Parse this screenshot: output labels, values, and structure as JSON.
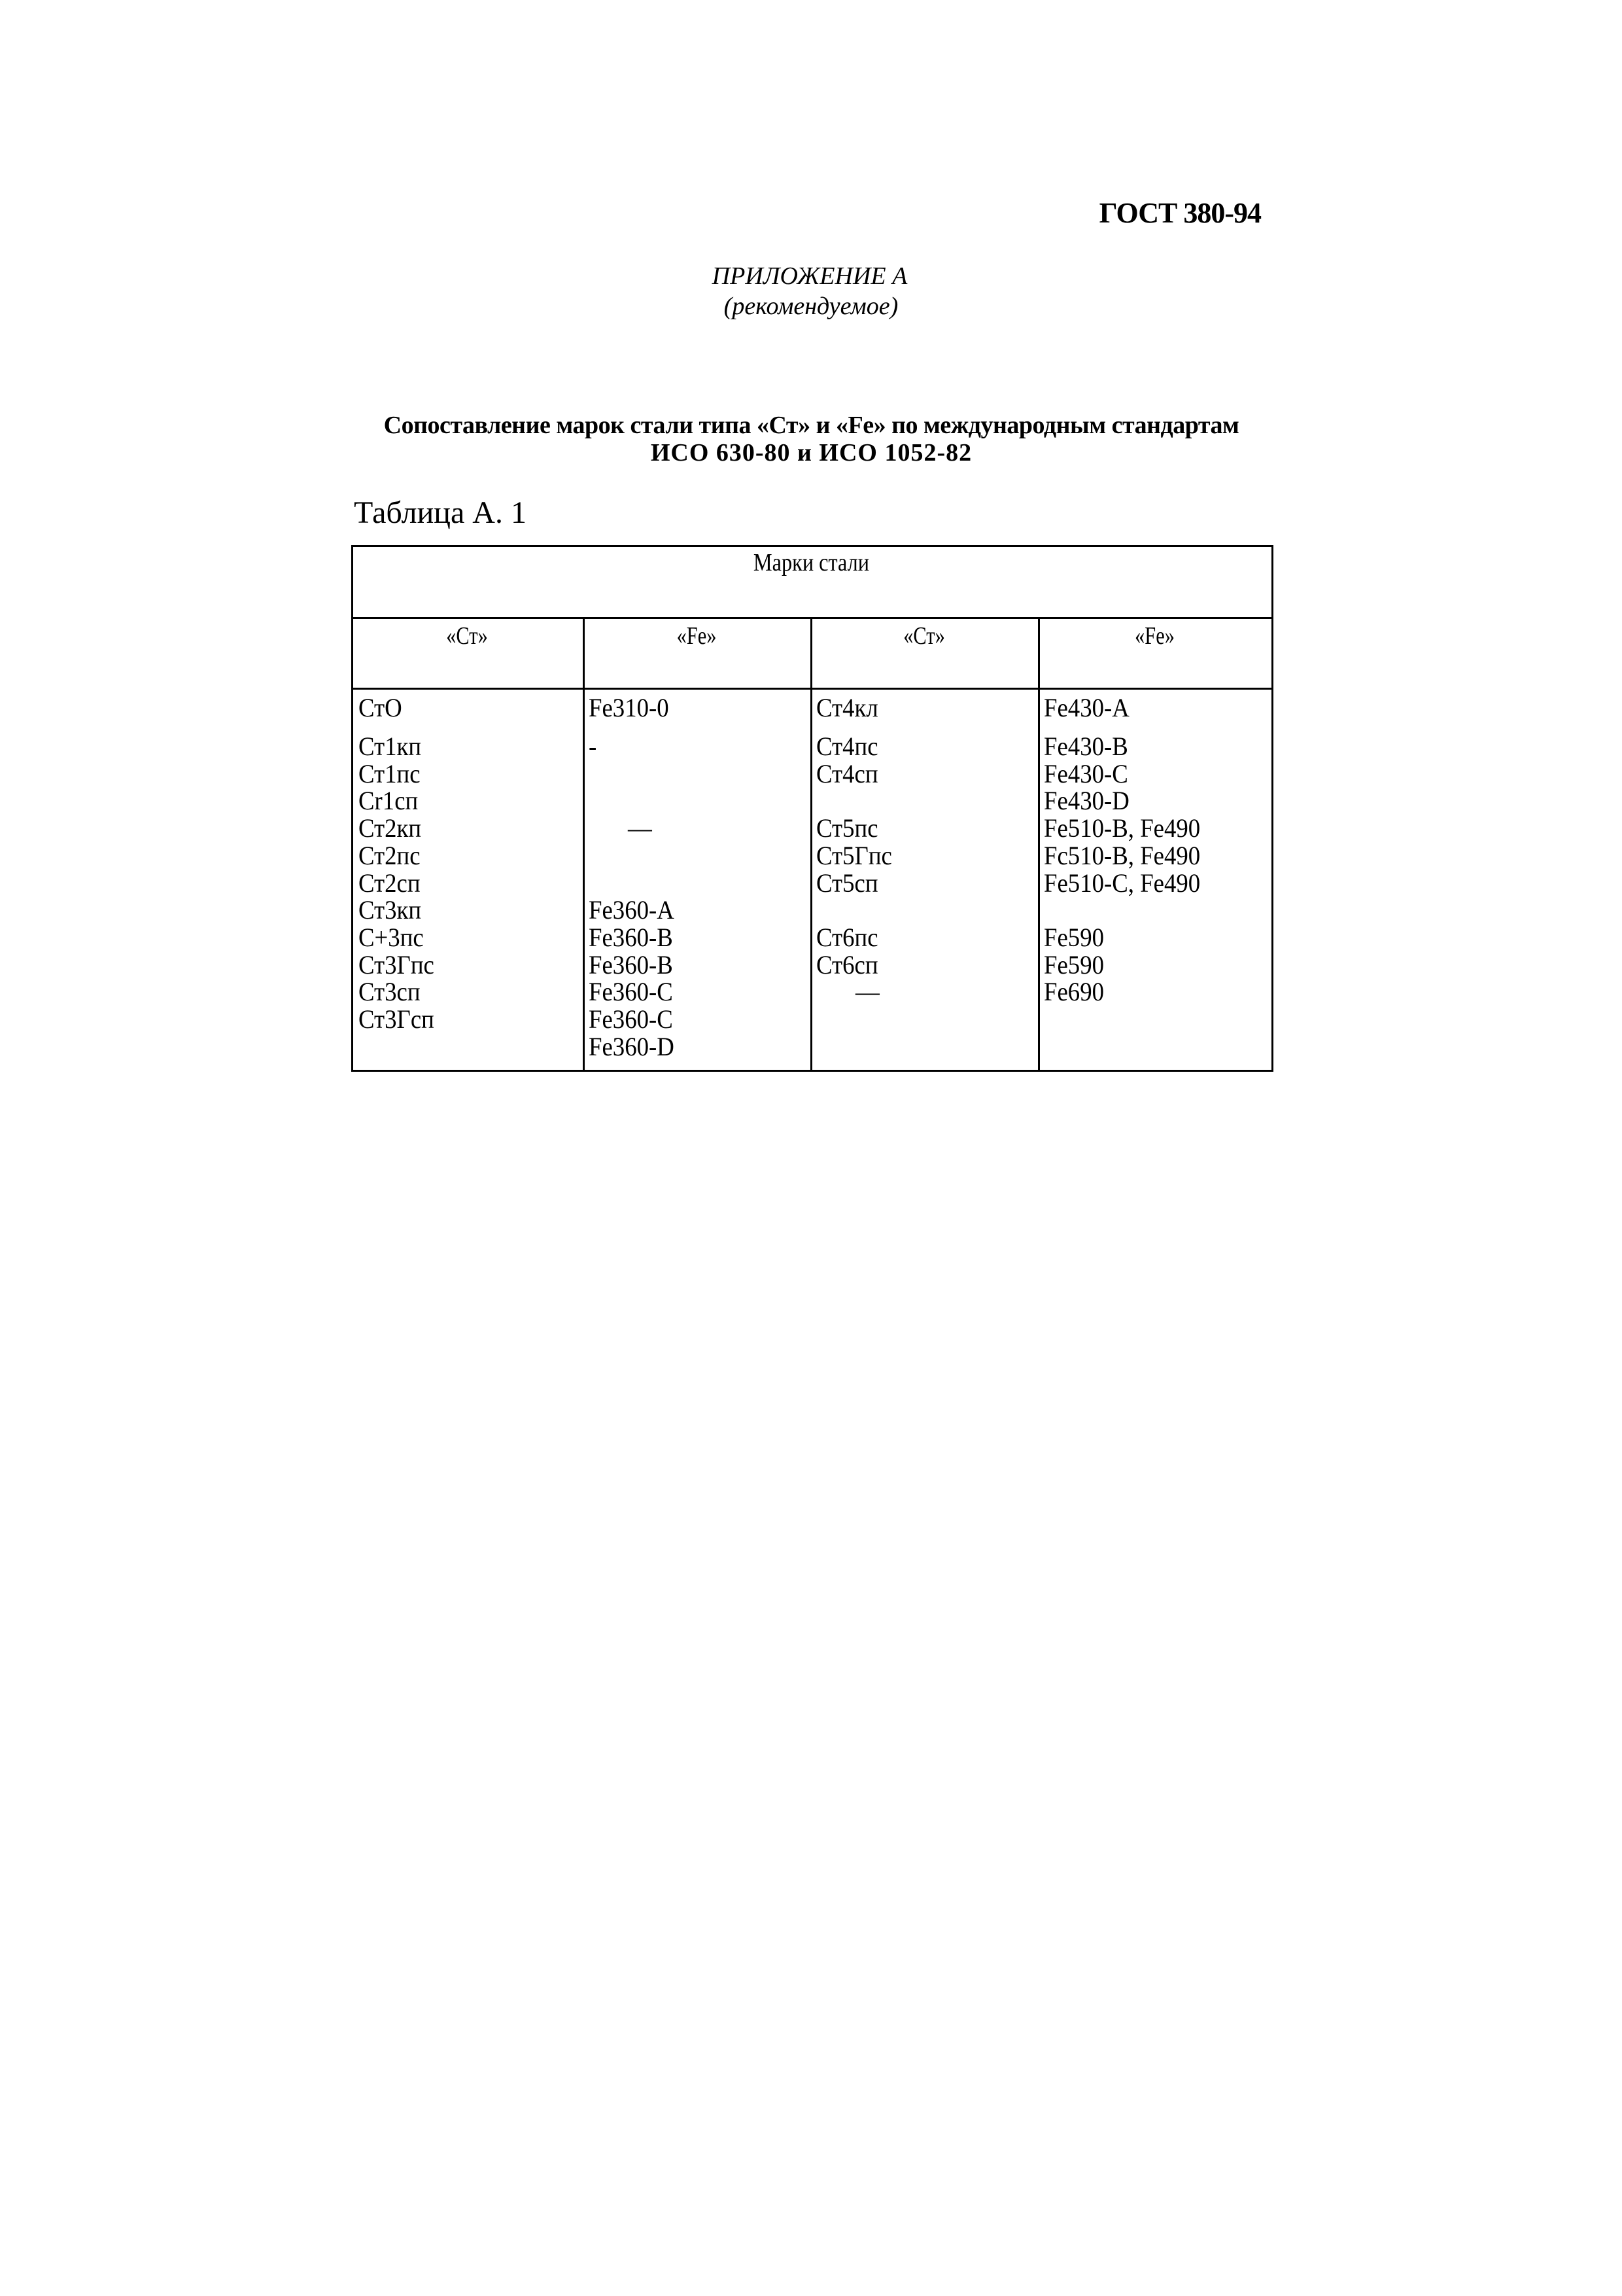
{
  "header": {
    "doc_code": "ГОСТ 380-94",
    "appendix": "ПРИЛОЖЕНИЕ А",
    "appendix_note": "(рекомендуемое)",
    "title_line1": "Сопоставление марок стали типа «Ст» и «Fe» по международным стандартам",
    "title_line2": "ИСО 630-80 и ИСО 1052-82",
    "table_label": "Таблица  А. 1"
  },
  "table": {
    "main_header": "Марки стали",
    "column_headers": [
      "«Ст»",
      "«Fe»",
      "«Ст»",
      "«Fe»"
    ],
    "columns": [
      [
        "СтО",
        "Ст1кп",
        "Ст1пс",
        "Cr1cп",
        "Ст2кп",
        "Ст2пс",
        "Ст2сп",
        "Ст3кп",
        "С+3пс",
        "Ст3Гпс",
        "Ст3сп",
        "Ст3Гсп",
        ""
      ],
      [
        "Fe310-0",
        "-",
        "",
        "",
        "—",
        "",
        "",
        "Fe360-A",
        "Fe360-B",
        "Fe360-B",
        "Fe360-C",
        "Fe360-C",
        "Fe360-D"
      ],
      [
        "Ст4кл",
        "Ст4пс",
        "Ст4сп",
        "",
        "Ст5пс",
        "Ст5Гпс",
        "Ст5сп",
        "",
        "Ст6пс",
        "Ст6сп",
        "—",
        "",
        ""
      ],
      [
        "Fe430-A",
        "Fe430-B",
        "Fe430-C",
        "Fe430-D",
        "Fe510-B, Fe490",
        "Fc510-B, Fe490",
        "Fe510-C, Fe490",
        "",
        "Fe590",
        "Fe590",
        "Fe690",
        "",
        ""
      ]
    ]
  }
}
